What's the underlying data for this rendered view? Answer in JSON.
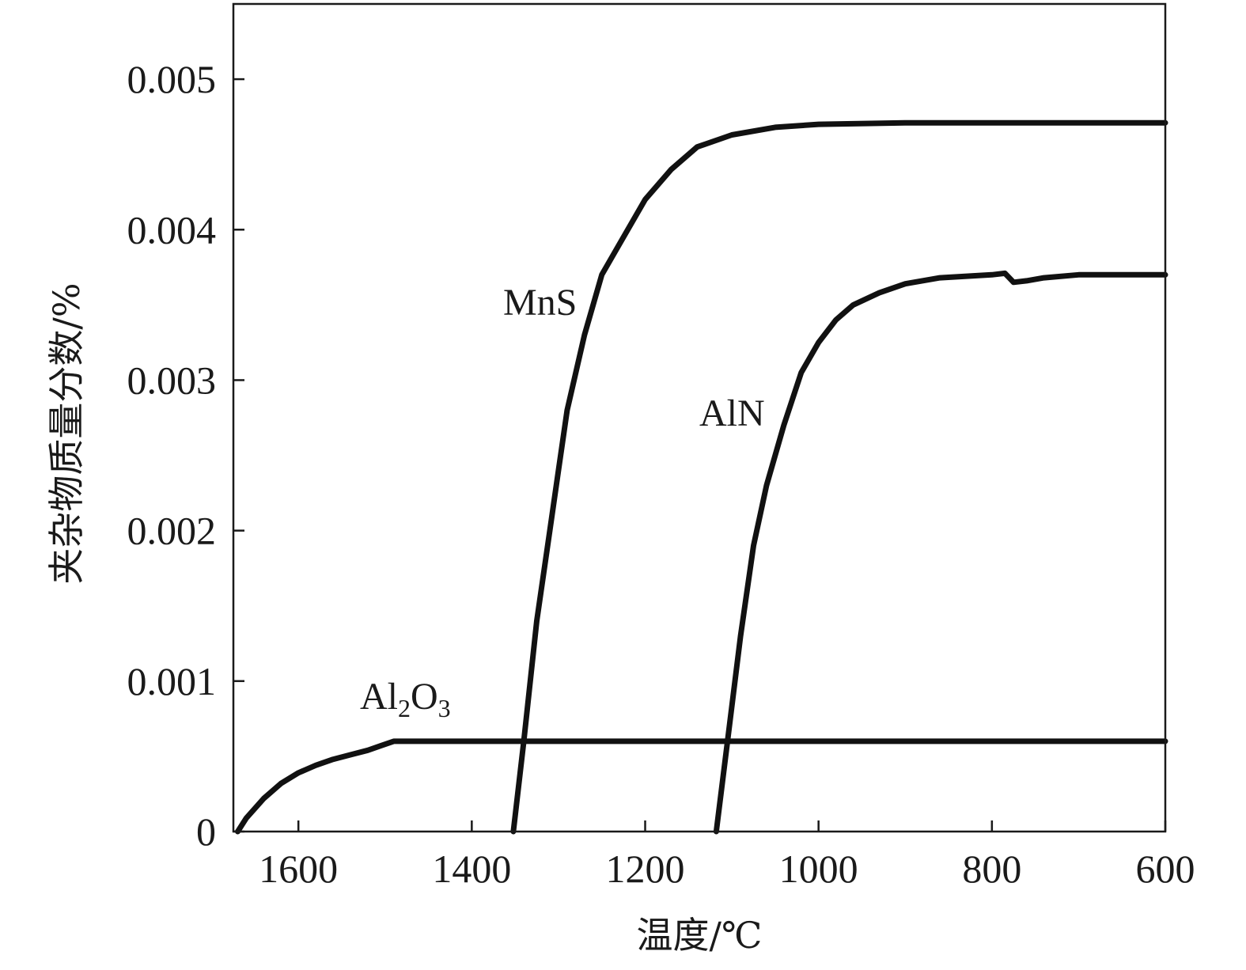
{
  "chart_data": {
    "type": "line",
    "title": "",
    "xlabel": "温度/℃",
    "ylabel": "夹杂物质量分数/%",
    "xlim": [
      1675,
      600
    ],
    "ylim": [
      0,
      0.0055
    ],
    "x_reversed": true,
    "grid": false,
    "line_color": "#111111",
    "xticks": [
      1600,
      1400,
      1200,
      1000,
      800,
      600
    ],
    "xtick_labels": [
      "1600",
      "1400",
      "1200",
      "1000",
      "800",
      "600"
    ],
    "yticks": [
      0,
      0.001,
      0.002,
      0.003,
      0.004,
      0.005
    ],
    "ytick_labels": [
      "0",
      "0.001",
      "0.002",
      "0.003",
      "0.004",
      "0.005"
    ],
    "series": [
      {
        "name": "Al2O3",
        "label_main": "Al",
        "label_sub1": "2",
        "label_mid": "O",
        "label_sub2": "3",
        "points": [
          [
            1670,
            0
          ],
          [
            1660,
            9e-05
          ],
          [
            1640,
            0.00022
          ],
          [
            1620,
            0.00032
          ],
          [
            1600,
            0.00039
          ],
          [
            1580,
            0.00044
          ],
          [
            1560,
            0.00048
          ],
          [
            1540,
            0.00051
          ],
          [
            1520,
            0.00054
          ],
          [
            1505,
            0.00057
          ],
          [
            1490,
            0.0006
          ],
          [
            1400,
            0.0006
          ],
          [
            1200,
            0.0006
          ],
          [
            1000,
            0.0006
          ],
          [
            800,
            0.0006
          ],
          [
            600,
            0.0006
          ]
        ]
      },
      {
        "name": "MnS",
        "points": [
          [
            1352,
            0
          ],
          [
            1340,
            0.0006
          ],
          [
            1325,
            0.0014
          ],
          [
            1310,
            0.002
          ],
          [
            1300,
            0.0024
          ],
          [
            1290,
            0.0028
          ],
          [
            1270,
            0.0033
          ],
          [
            1250,
            0.0037
          ],
          [
            1230,
            0.0039
          ],
          [
            1200,
            0.0042
          ],
          [
            1170,
            0.0044
          ],
          [
            1140,
            0.00455
          ],
          [
            1100,
            0.00463
          ],
          [
            1050,
            0.00468
          ],
          [
            1000,
            0.0047
          ],
          [
            900,
            0.00471
          ],
          [
            800,
            0.00471
          ],
          [
            700,
            0.00471
          ],
          [
            600,
            0.00471
          ]
        ]
      },
      {
        "name": "AlN",
        "points": [
          [
            1118,
            0
          ],
          [
            1105,
            0.0006
          ],
          [
            1090,
            0.0013
          ],
          [
            1075,
            0.0019
          ],
          [
            1060,
            0.0023
          ],
          [
            1040,
            0.0027
          ],
          [
            1020,
            0.00305
          ],
          [
            1000,
            0.00325
          ],
          [
            980,
            0.0034
          ],
          [
            960,
            0.0035
          ],
          [
            930,
            0.00358
          ],
          [
            900,
            0.00364
          ],
          [
            860,
            0.00368
          ],
          [
            800,
            0.0037
          ],
          [
            785,
            0.00371
          ],
          [
            775,
            0.00365
          ],
          [
            760,
            0.00366
          ],
          [
            740,
            0.00368
          ],
          [
            700,
            0.0037
          ],
          [
            600,
            0.0037
          ]
        ]
      }
    ]
  }
}
